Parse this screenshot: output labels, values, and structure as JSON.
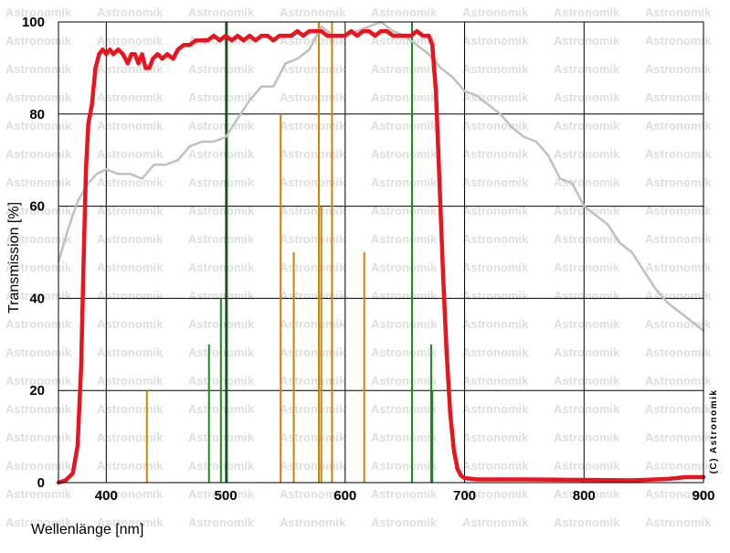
{
  "chart_data": {
    "type": "line",
    "xlabel": "Wellenlänge [nm]",
    "ylabel": "Transmission [%]",
    "xlim": [
      360,
      900
    ],
    "ylim": [
      0,
      100
    ],
    "x_ticks": [
      400,
      500,
      600,
      700,
      800,
      900
    ],
    "y_ticks": [
      0,
      20,
      40,
      60,
      80,
      100
    ],
    "grid": true,
    "watermark": "Astronomik",
    "copyright": "(C) Astronomik",
    "series": [
      {
        "color": "#e8141e",
        "points": [
          [
            360,
            0
          ],
          [
            366,
            0.5
          ],
          [
            372,
            2
          ],
          [
            376,
            8
          ],
          [
            379,
            25
          ],
          [
            381,
            48
          ],
          [
            383,
            68
          ],
          [
            385,
            78
          ],
          [
            388,
            82
          ],
          [
            391,
            90
          ],
          [
            394,
            93
          ],
          [
            397,
            94
          ],
          [
            400,
            93
          ],
          [
            403,
            94
          ],
          [
            406,
            93
          ],
          [
            410,
            94
          ],
          [
            414,
            93
          ],
          [
            418,
            91
          ],
          [
            421,
            93
          ],
          [
            424,
            93
          ],
          [
            427,
            91
          ],
          [
            430,
            93
          ],
          [
            433,
            90
          ],
          [
            436,
            90
          ],
          [
            439,
            92
          ],
          [
            443,
            93
          ],
          [
            447,
            92
          ],
          [
            451,
            93
          ],
          [
            456,
            92
          ],
          [
            460,
            94
          ],
          [
            465,
            95
          ],
          [
            470,
            95
          ],
          [
            475,
            96
          ],
          [
            480,
            96
          ],
          [
            485,
            96
          ],
          [
            490,
            97
          ],
          [
            495,
            96
          ],
          [
            500,
            97
          ],
          [
            505,
            96
          ],
          [
            510,
            97
          ],
          [
            515,
            96
          ],
          [
            520,
            97
          ],
          [
            525,
            96
          ],
          [
            530,
            97
          ],
          [
            535,
            97
          ],
          [
            540,
            96
          ],
          [
            545,
            97
          ],
          [
            550,
            97
          ],
          [
            555,
            97
          ],
          [
            560,
            98
          ],
          [
            565,
            97
          ],
          [
            570,
            98
          ],
          [
            575,
            98
          ],
          [
            580,
            98
          ],
          [
            585,
            97
          ],
          [
            590,
            97
          ],
          [
            595,
            97
          ],
          [
            600,
            97
          ],
          [
            605,
            98
          ],
          [
            610,
            97
          ],
          [
            615,
            98
          ],
          [
            620,
            98
          ],
          [
            625,
            97
          ],
          [
            630,
            98
          ],
          [
            635,
            98
          ],
          [
            640,
            97
          ],
          [
            645,
            97
          ],
          [
            650,
            97
          ],
          [
            655,
            97
          ],
          [
            660,
            98
          ],
          [
            665,
            97
          ],
          [
            670,
            97
          ],
          [
            673,
            95
          ],
          [
            676,
            85
          ],
          [
            679,
            65
          ],
          [
            682,
            45
          ],
          [
            685,
            28
          ],
          [
            688,
            15
          ],
          [
            691,
            7
          ],
          [
            694,
            3
          ],
          [
            697,
            1.5
          ],
          [
            700,
            1
          ],
          [
            710,
            0.7
          ],
          [
            750,
            0.7
          ],
          [
            800,
            0.6
          ],
          [
            840,
            0.5
          ],
          [
            870,
            0.8
          ],
          [
            885,
            1.2
          ],
          [
            900,
            1.2
          ]
        ]
      },
      {
        "color": "#c0c0c0",
        "points": [
          [
            360,
            48
          ],
          [
            368,
            55
          ],
          [
            376,
            61
          ],
          [
            385,
            65
          ],
          [
            392,
            67
          ],
          [
            400,
            68
          ],
          [
            410,
            67
          ],
          [
            420,
            67
          ],
          [
            430,
            66
          ],
          [
            440,
            69
          ],
          [
            450,
            69
          ],
          [
            460,
            70
          ],
          [
            470,
            73
          ],
          [
            480,
            74
          ],
          [
            490,
            74
          ],
          [
            500,
            75
          ],
          [
            510,
            79
          ],
          [
            520,
            83
          ],
          [
            530,
            86
          ],
          [
            540,
            86
          ],
          [
            550,
            91
          ],
          [
            560,
            92
          ],
          [
            570,
            94
          ],
          [
            580,
            99
          ],
          [
            590,
            97
          ],
          [
            600,
            97
          ],
          [
            610,
            98
          ],
          [
            620,
            99
          ],
          [
            630,
            100
          ],
          [
            640,
            98
          ],
          [
            650,
            97
          ],
          [
            660,
            95
          ],
          [
            670,
            93
          ],
          [
            680,
            90
          ],
          [
            690,
            88
          ],
          [
            700,
            85
          ],
          [
            710,
            84
          ],
          [
            720,
            82
          ],
          [
            730,
            80
          ],
          [
            740,
            77
          ],
          [
            750,
            75
          ],
          [
            760,
            74
          ],
          [
            770,
            71
          ],
          [
            780,
            66
          ],
          [
            790,
            65
          ],
          [
            800,
            60
          ],
          [
            810,
            58
          ],
          [
            820,
            56
          ],
          [
            830,
            52
          ],
          [
            840,
            50
          ],
          [
            850,
            46
          ],
          [
            860,
            42
          ],
          [
            870,
            39
          ],
          [
            880,
            37
          ],
          [
            890,
            35
          ],
          [
            900,
            33
          ]
        ]
      }
    ],
    "emission_lines": [
      {
        "color": "#cc8400",
        "x": 434,
        "y": 20
      },
      {
        "color": "#cc8400",
        "x": 546,
        "y": 80
      },
      {
        "color": "#cc8400",
        "x": 557,
        "y": 50
      },
      {
        "color": "#cc8400",
        "x": 578,
        "y": 100
      },
      {
        "color": "#cc8400",
        "x": 580,
        "y": 60
      },
      {
        "color": "#cc8400",
        "x": 589,
        "y": 100
      },
      {
        "color": "#cc8400",
        "x": 616,
        "y": 50
      },
      {
        "color": "#1a8a1a",
        "x": 486,
        "y": 30
      },
      {
        "color": "#1a8a1a",
        "x": 496,
        "y": 40
      },
      {
        "color": "#1a6a1a",
        "x": 501,
        "y": 100
      },
      {
        "color": "#1a8a1a",
        "x": 656,
        "y": 100
      },
      {
        "color": "#1a8a1a",
        "x": 672,
        "y": 30
      },
      {
        "color": "#1a8a1a",
        "x": 673,
        "y": 20
      }
    ]
  }
}
